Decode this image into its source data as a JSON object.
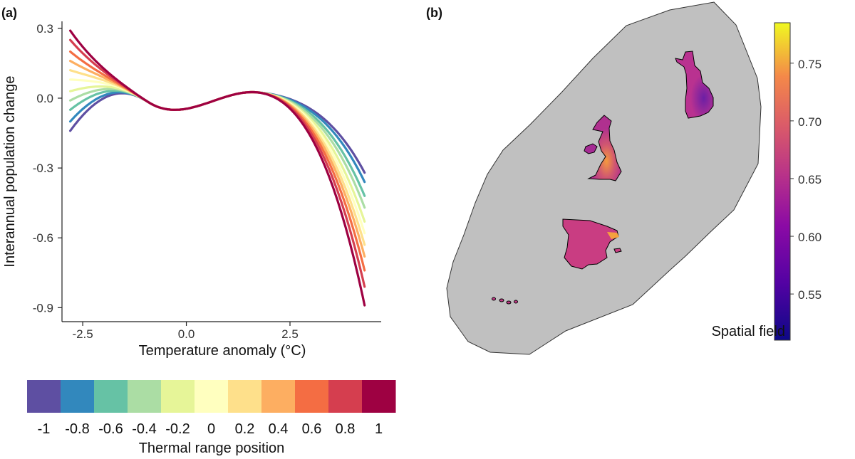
{
  "chart_data": [
    {
      "panel": "(a)",
      "type": "line",
      "xlabel": "Temperature anomaly (°C)",
      "ylabel": "Interannual population change",
      "xlim": [
        -3.0,
        4.7
      ],
      "ylim": [
        -0.96,
        0.33
      ],
      "x_ticks": [
        "-2.5",
        "0.0",
        "2.5"
      ],
      "x_tick_values": [
        -2.5,
        0.0,
        2.5
      ],
      "y_ticks": [
        "0.3",
        "0.0",
        "-0.3",
        "-0.6",
        "-0.9"
      ],
      "y_tick_values": [
        0.3,
        0.0,
        -0.3,
        -0.6,
        -0.9
      ],
      "x_range": [
        -2.8,
        4.3
      ],
      "series": [
        {
          "name": "-1",
          "color": "#5e4fa2",
          "y_start": -0.14,
          "y_end": -0.32
        },
        {
          "name": "-0.8",
          "color": "#3288bd",
          "y_start": -0.1,
          "y_end": -0.36
        },
        {
          "name": "-0.6",
          "color": "#66c2a5",
          "y_start": -0.05,
          "y_end": -0.42
        },
        {
          "name": "-0.4",
          "color": "#abdda4",
          "y_start": -0.01,
          "y_end": -0.47
        },
        {
          "name": "-0.2",
          "color": "#e6f598",
          "y_start": 0.03,
          "y_end": -0.53
        },
        {
          "name": "0",
          "color": "#ffffbf",
          "y_start": 0.08,
          "y_end": -0.58
        },
        {
          "name": "0.2",
          "color": "#fee08b",
          "y_start": 0.12,
          "y_end": -0.63
        },
        {
          "name": "0.4",
          "color": "#fdae61",
          "y_start": 0.16,
          "y_end": -0.68
        },
        {
          "name": "0.6",
          "color": "#f46d43",
          "y_start": 0.2,
          "y_end": -0.74
        },
        {
          "name": "0.8",
          "color": "#d53e4f",
          "y_start": 0.25,
          "y_end": -0.81
        },
        {
          "name": "1",
          "color": "#9e0142",
          "y_start": 0.29,
          "y_end": -0.89
        }
      ],
      "legend": {
        "title": "Thermal range position",
        "labels": [
          "-1",
          "-0.8",
          "-0.6",
          "-0.4",
          "-0.2",
          "0",
          "0.2",
          "0.4",
          "0.6",
          "0.8",
          "1"
        ],
        "colors": [
          "#5e4fa2",
          "#3288bd",
          "#66c2a5",
          "#abdda4",
          "#e6f598",
          "#ffffbf",
          "#fee08b",
          "#fdae61",
          "#f46d43",
          "#d53e4f",
          "#9e0142"
        ],
        "placement": "bottom"
      }
    },
    {
      "panel": "(b)",
      "type": "map",
      "title": "",
      "regions": [
        {
          "name": "Finland",
          "fill": "#b93290"
        },
        {
          "name": "Great Britain",
          "fill": "#b93290"
        },
        {
          "name": "Ireland",
          "fill": "#b93290"
        },
        {
          "name": "Iberia",
          "fill": "#c93d82"
        },
        {
          "name": "Canary Islands",
          "fill": "#c23a87"
        }
      ],
      "mesh_fill": "#c0c0c0",
      "colorbar": {
        "title": "Spatial field",
        "ticks": [
          "0.75",
          "0.70",
          "0.65",
          "0.60",
          "0.55"
        ],
        "tick_values": [
          0.75,
          0.7,
          0.65,
          0.6,
          0.55
        ],
        "range": [
          0.51,
          0.785
        ],
        "colormap": [
          "#0d0887",
          "#6a00a8",
          "#b12a90",
          "#e16462",
          "#fca636",
          "#f0f921"
        ]
      }
    }
  ]
}
